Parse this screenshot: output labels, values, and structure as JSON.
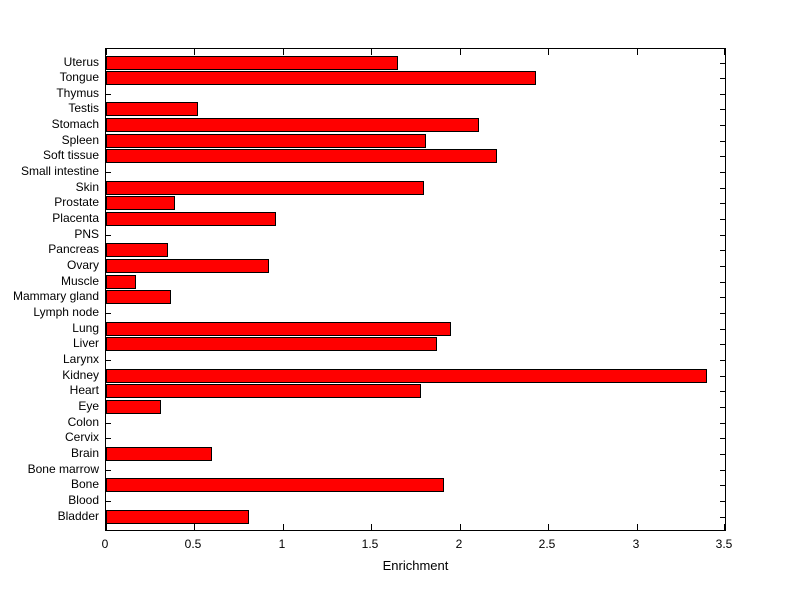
{
  "chart_data": {
    "type": "bar",
    "orientation": "horizontal",
    "title": "",
    "xlabel": "Enrichment",
    "ylabel": "",
    "xlim": [
      0,
      3.5
    ],
    "xticks": [
      0,
      0.5,
      1,
      1.5,
      2,
      2.5,
      3,
      3.5
    ],
    "xtick_labels": [
      "0",
      "0.5",
      "1",
      "1.5",
      "2",
      "2.5",
      "3",
      "3.5"
    ],
    "grid": false,
    "legend": null,
    "bar_color": "#ff0000",
    "bar_edge_color": "#000000",
    "axis_color": "#000000",
    "background_color": "#ffffff",
    "categories": [
      "Uterus",
      "Tongue",
      "Thymus",
      "Testis",
      "Stomach",
      "Spleen",
      "Soft tissue",
      "Small intestine",
      "Skin",
      "Prostate",
      "Placenta",
      "PNS",
      "Pancreas",
      "Ovary",
      "Muscle",
      "Mammary gland",
      "Lymph node",
      "Lung",
      "Liver",
      "Larynx",
      "Kidney",
      "Heart",
      "Eye",
      "Colon",
      "Cervix",
      "Brain",
      "Bone marrow",
      "Bone",
      "Blood",
      "Bladder"
    ],
    "values": [
      1.65,
      2.43,
      0,
      0.52,
      2.11,
      1.81,
      2.21,
      0,
      1.8,
      0.39,
      0.96,
      0,
      0.35,
      0.92,
      0.17,
      0.37,
      0,
      1.95,
      1.87,
      0,
      3.4,
      1.78,
      0.31,
      0,
      0,
      0.6,
      0,
      1.91,
      0,
      0.81
    ]
  }
}
